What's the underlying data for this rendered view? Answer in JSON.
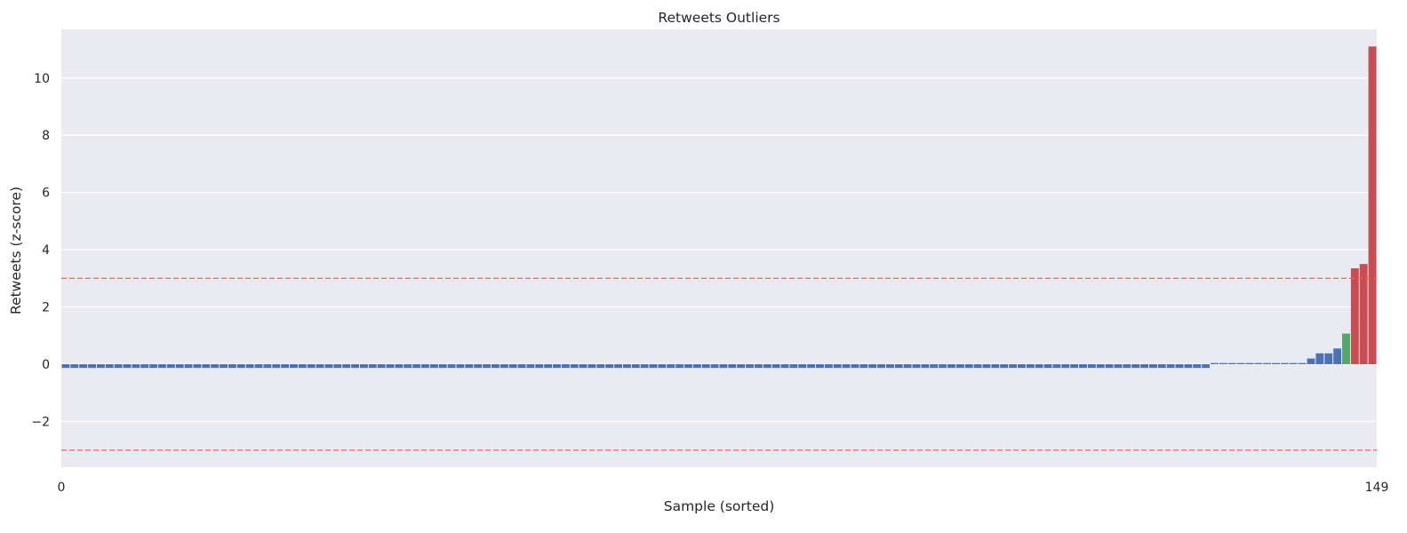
{
  "chart_data": {
    "type": "bar",
    "title": "Retweets Outliers",
    "xlabel": "Sample (sorted)",
    "ylabel": "Retweets (z-score)",
    "xlim": [
      0,
      149
    ],
    "ylim": [
      -3.6,
      11.7
    ],
    "x_ticks": [
      {
        "value": 0,
        "label": "0"
      },
      {
        "value": 149,
        "label": "149"
      }
    ],
    "y_ticks": [
      {
        "value": -2,
        "label": "−2"
      },
      {
        "value": 0,
        "label": "0"
      },
      {
        "value": 2,
        "label": "2"
      },
      {
        "value": 4,
        "label": "4"
      },
      {
        "value": 6,
        "label": "6"
      },
      {
        "value": 8,
        "label": "8"
      },
      {
        "value": 10,
        "label": "10"
      }
    ],
    "grid": true,
    "thresholds": [
      3,
      -3
    ],
    "colors": {
      "normal": "#4c72b0",
      "high": "#55a868",
      "outlier": "#c44e52",
      "threshold": "#ff5a5a",
      "plot_bg": "#eaeaf2",
      "grid": "#ffffff"
    },
    "values": [
      -0.13,
      -0.13,
      -0.13,
      -0.13,
      -0.13,
      -0.13,
      -0.13,
      -0.13,
      -0.13,
      -0.13,
      -0.13,
      -0.13,
      -0.13,
      -0.13,
      -0.13,
      -0.13,
      -0.13,
      -0.13,
      -0.13,
      -0.13,
      -0.13,
      -0.13,
      -0.13,
      -0.13,
      -0.13,
      -0.13,
      -0.13,
      -0.13,
      -0.13,
      -0.13,
      -0.13,
      -0.13,
      -0.13,
      -0.13,
      -0.13,
      -0.13,
      -0.13,
      -0.13,
      -0.13,
      -0.13,
      -0.13,
      -0.13,
      -0.13,
      -0.13,
      -0.13,
      -0.13,
      -0.13,
      -0.13,
      -0.13,
      -0.13,
      -0.13,
      -0.13,
      -0.13,
      -0.13,
      -0.13,
      -0.13,
      -0.13,
      -0.13,
      -0.13,
      -0.13,
      -0.13,
      -0.13,
      -0.13,
      -0.13,
      -0.13,
      -0.13,
      -0.13,
      -0.13,
      -0.13,
      -0.13,
      -0.13,
      -0.13,
      -0.13,
      -0.13,
      -0.13,
      -0.13,
      -0.13,
      -0.13,
      -0.13,
      -0.13,
      -0.13,
      -0.13,
      -0.13,
      -0.13,
      -0.13,
      -0.13,
      -0.13,
      -0.13,
      -0.13,
      -0.13,
      -0.13,
      -0.13,
      -0.13,
      -0.13,
      -0.13,
      -0.13,
      -0.13,
      -0.13,
      -0.13,
      -0.13,
      -0.13,
      -0.13,
      -0.13,
      -0.13,
      -0.13,
      -0.13,
      -0.13,
      -0.13,
      -0.13,
      -0.13,
      -0.13,
      -0.13,
      -0.13,
      -0.13,
      -0.13,
      -0.13,
      -0.13,
      -0.13,
      -0.13,
      -0.13,
      -0.13,
      -0.13,
      -0.13,
      -0.13,
      -0.13,
      -0.13,
      -0.13,
      -0.13,
      -0.13,
      -0.13,
      -0.13,
      0.04,
      0.04,
      0.04,
      0.04,
      0.04,
      0.04,
      0.04,
      0.04,
      0.04,
      0.04,
      0.04,
      0.2,
      0.38,
      0.38,
      0.55,
      1.07,
      3.35,
      3.5,
      11.1
    ],
    "bar_categories": [
      "normal",
      "normal",
      "normal",
      "normal",
      "normal",
      "normal",
      "normal",
      "normal",
      "normal",
      "normal",
      "normal",
      "normal",
      "normal",
      "normal",
      "normal",
      "normal",
      "normal",
      "normal",
      "normal",
      "normal",
      "normal",
      "normal",
      "normal",
      "normal",
      "normal",
      "normal",
      "normal",
      "normal",
      "normal",
      "normal",
      "normal",
      "normal",
      "normal",
      "normal",
      "normal",
      "normal",
      "normal",
      "normal",
      "normal",
      "normal",
      "normal",
      "normal",
      "normal",
      "normal",
      "normal",
      "normal",
      "normal",
      "normal",
      "normal",
      "normal",
      "normal",
      "normal",
      "normal",
      "normal",
      "normal",
      "normal",
      "normal",
      "normal",
      "normal",
      "normal",
      "normal",
      "normal",
      "normal",
      "normal",
      "normal",
      "normal",
      "normal",
      "normal",
      "normal",
      "normal",
      "normal",
      "normal",
      "normal",
      "normal",
      "normal",
      "normal",
      "normal",
      "normal",
      "normal",
      "normal",
      "normal",
      "normal",
      "normal",
      "normal",
      "normal",
      "normal",
      "normal",
      "normal",
      "normal",
      "normal",
      "normal",
      "normal",
      "normal",
      "normal",
      "normal",
      "normal",
      "normal",
      "normal",
      "normal",
      "normal",
      "normal",
      "normal",
      "normal",
      "normal",
      "normal",
      "normal",
      "normal",
      "normal",
      "normal",
      "normal",
      "normal",
      "normal",
      "normal",
      "normal",
      "normal",
      "normal",
      "normal",
      "normal",
      "normal",
      "normal",
      "normal",
      "normal",
      "normal",
      "normal",
      "normal",
      "normal",
      "normal",
      "normal",
      "normal",
      "normal",
      "normal",
      "normal",
      "normal",
      "normal",
      "normal",
      "normal",
      "normal",
      "normal",
      "normal",
      "normal",
      "normal",
      "normal",
      "normal",
      "normal",
      "normal",
      "normal",
      "high",
      "outlier",
      "outlier",
      "outlier"
    ]
  }
}
